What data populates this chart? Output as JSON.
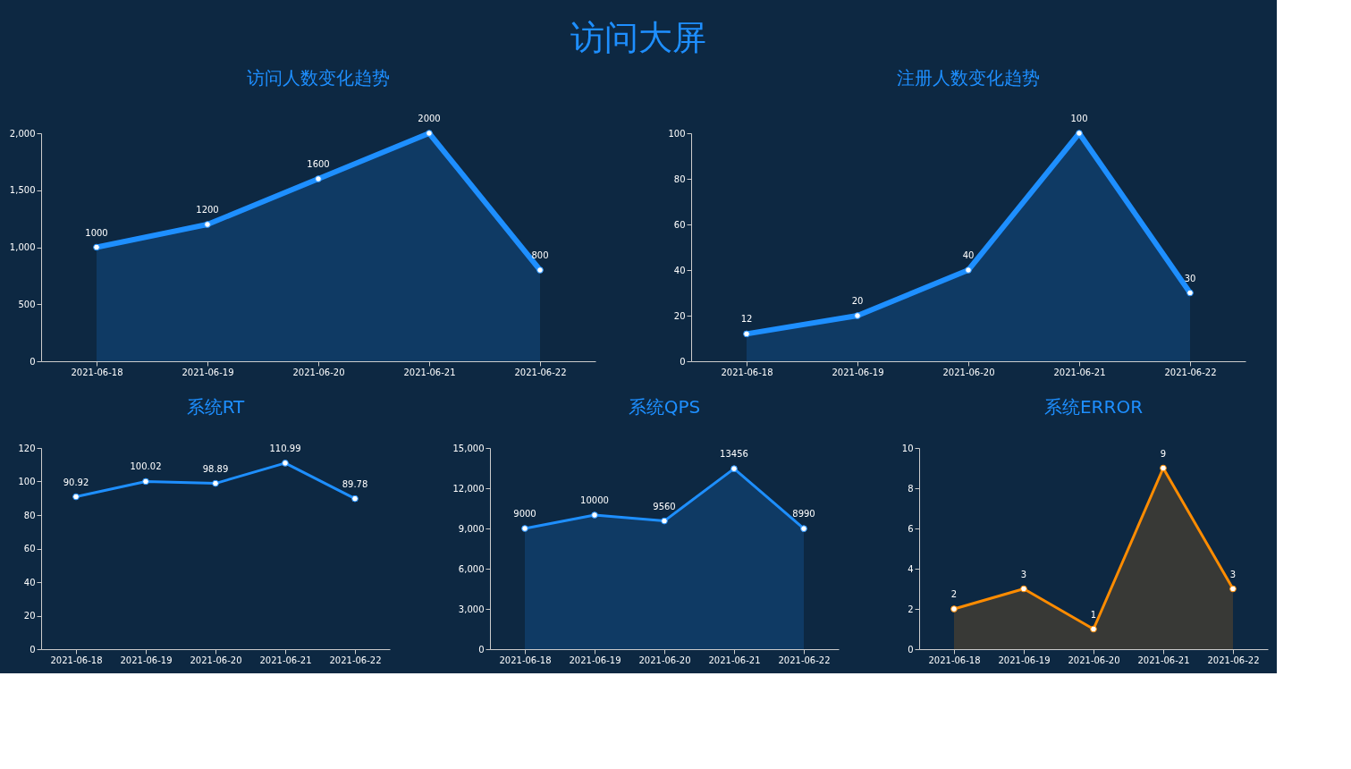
{
  "chart_data": [
    {
      "type": "area",
      "title": "访问人数变化趋势",
      "annotations": [
        "访问大屏"
      ],
      "categories": [
        "2021-06-18",
        "2021-06-19",
        "2021-06-20",
        "2021-06-21",
        "2021-06-22"
      ],
      "values": [
        1000,
        1200,
        1600,
        2000,
        800
      ],
      "color": "#1e8fff",
      "ylim": [
        0,
        2000
      ],
      "yticks": [
        0,
        500,
        {
          "value": 1000,
          "label": "1,000"
        },
        {
          "value": 1500,
          "label": "1,500"
        },
        {
          "value": 2000,
          "label": "2,000"
        }
      ],
      "data_labels": true,
      "marker": "circle",
      "grid": false
    },
    {
      "type": "area",
      "title": "注册人数变化趋势",
      "categories": [
        "2021-06-18",
        "2021-06-19",
        "2021-06-20",
        "2021-06-21",
        "2021-06-22"
      ],
      "values": [
        12,
        20,
        40,
        100,
        30
      ],
      "color": "#1e8fff",
      "ylim": [
        0,
        100
      ],
      "yticks": [
        0,
        20,
        40,
        60,
        80,
        100
      ],
      "data_labels": true,
      "marker": "circle",
      "grid": false
    },
    {
      "type": "line",
      "title": "系统RT",
      "categories": [
        "2021-06-18",
        "2021-06-19",
        "2021-06-20",
        "2021-06-21",
        "2021-06-22"
      ],
      "values": [
        90.92,
        100.02,
        98.89,
        110.99,
        89.78
      ],
      "color": "#1e8fff",
      "ylim": [
        0,
        120
      ],
      "yticks": [
        0,
        20,
        40,
        60,
        80,
        100,
        120
      ],
      "data_labels": true,
      "marker": "circle",
      "grid": false
    },
    {
      "type": "area",
      "title": "系统QPS",
      "categories": [
        "2021-06-18",
        "2021-06-19",
        "2021-06-20",
        "2021-06-21",
        "2021-06-22"
      ],
      "values": [
        9000,
        10000,
        9560,
        13456,
        8990
      ],
      "color": "#1e8fff",
      "ylim": [
        0,
        15000
      ],
      "yticks": [
        0,
        {
          "value": 3000,
          "label": "3,000"
        },
        {
          "value": 6000,
          "label": "6,000"
        },
        {
          "value": 9000,
          "label": "9,000"
        },
        {
          "value": 12000,
          "label": "12,000"
        },
        {
          "value": 15000,
          "label": "15,000"
        }
      ],
      "data_labels": true,
      "marker": "circle",
      "grid": false
    },
    {
      "type": "area",
      "title": "系统ERROR",
      "categories": [
        "2021-06-18",
        "2021-06-19",
        "2021-06-20",
        "2021-06-21",
        "2021-06-22"
      ],
      "values": [
        2,
        3,
        1,
        9,
        3
      ],
      "color": "#ff8c00",
      "ylim": [
        0,
        10
      ],
      "yticks": [
        0,
        2,
        4,
        6,
        8,
        10
      ],
      "data_labels": true,
      "marker": "circle",
      "grid": false
    }
  ]
}
